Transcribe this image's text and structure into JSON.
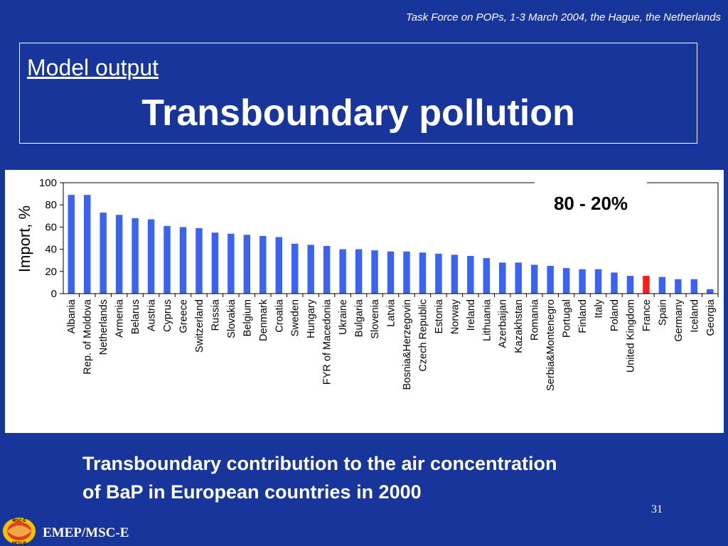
{
  "header": {
    "note": "Task Force on POPs, 1-3 March 2004, the Hague, the Netherlands"
  },
  "title_box": {
    "section": "Model output",
    "title": "Transboundary pollution"
  },
  "callout": "80 - 20%",
  "caption": {
    "line1": "Transboundary contribution to the air concentration",
    "line2": "of BaP in European countries in 2000"
  },
  "page_number": "31",
  "footer": {
    "label": "EMEP/MSC-E",
    "logo_icon": "emep-msc-e-logo-icon",
    "logo_text_top": "MSC-E",
    "logo_text_bottom": "МСЦ-В"
  },
  "colors": {
    "background": "#18359b",
    "bar": "#3a63f2",
    "highlight_bar": "#ff1a1a"
  },
  "chart_data": {
    "type": "bar",
    "ylabel": "Import, %",
    "ylim": [
      0,
      100
    ],
    "yticks": [
      0,
      20,
      40,
      60,
      80,
      100
    ],
    "grid": false,
    "highlight": "France",
    "categories": [
      "Albania",
      "Rep. of Moldova",
      "Netherlands",
      "Armenia",
      "Belarus",
      "Austria",
      "Cyprus",
      "Greece",
      "Switzerland",
      "Russia",
      "Slovakia",
      "Belgium",
      "Denmark",
      "Croatia",
      "Sweden",
      "Hungary",
      "FYR of Macedonia",
      "Ukraine",
      "Bulgaria",
      "Slovenia",
      "Latvia",
      "Bosnia&Herzegovin",
      "Czech Republic",
      "Estonia",
      "Norway",
      "Ireland",
      "Lithuania",
      "Azerbaijan",
      "Kazakhstan",
      "Romania",
      "Serbia&Montenegro",
      "Portugal",
      "Finland",
      "Italy",
      "Poland",
      "United Kingdom",
      "France",
      "Spain",
      "Germany",
      "Iceland",
      "Georgia"
    ],
    "values": [
      89,
      89,
      73,
      71,
      68,
      67,
      61,
      60,
      59,
      55,
      54,
      53,
      52,
      51,
      45,
      44,
      43,
      40,
      40,
      39,
      38,
      38,
      37,
      36,
      35,
      34,
      32,
      28,
      28,
      26,
      25,
      23,
      22,
      22,
      19,
      16,
      16,
      15,
      13,
      13,
      4
    ]
  }
}
